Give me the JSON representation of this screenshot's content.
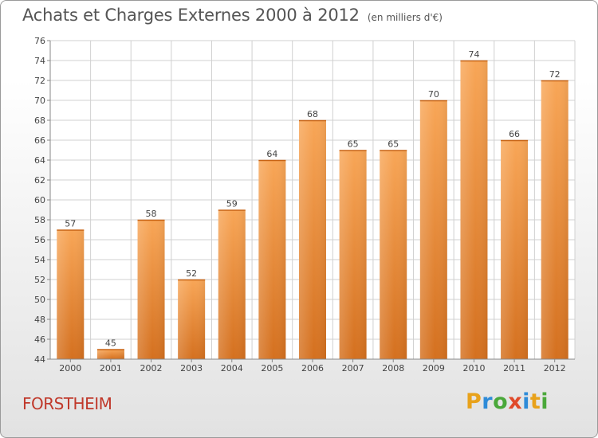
{
  "header": {
    "title": "Achats et Charges Externes 2000 à 2012",
    "unit": "(en milliers d'€)"
  },
  "commune": "FORSTHEIM",
  "logo": {
    "text": "Proxiti"
  },
  "chart_data": {
    "type": "bar",
    "title": "Achats et Charges Externes 2000 à 2012",
    "subtitle": "(en milliers d'€)",
    "categories": [
      "2000",
      "2001",
      "2002",
      "2003",
      "2004",
      "2005",
      "2006",
      "2007",
      "2008",
      "2009",
      "2010",
      "2011",
      "2012"
    ],
    "values": [
      57,
      45,
      58,
      52,
      59,
      64,
      68,
      65,
      65,
      70,
      74,
      66,
      72
    ],
    "ylim": [
      44,
      76
    ],
    "yticks": [
      44,
      46,
      48,
      50,
      52,
      54,
      56,
      58,
      60,
      62,
      64,
      66,
      68,
      70,
      72,
      74,
      76
    ],
    "grid": true,
    "data_labels": true,
    "colors": {
      "bar_light": "#f8a657",
      "bar_dark": "#d4701f",
      "grid": "#d0d0d0",
      "text": "#444444"
    }
  }
}
